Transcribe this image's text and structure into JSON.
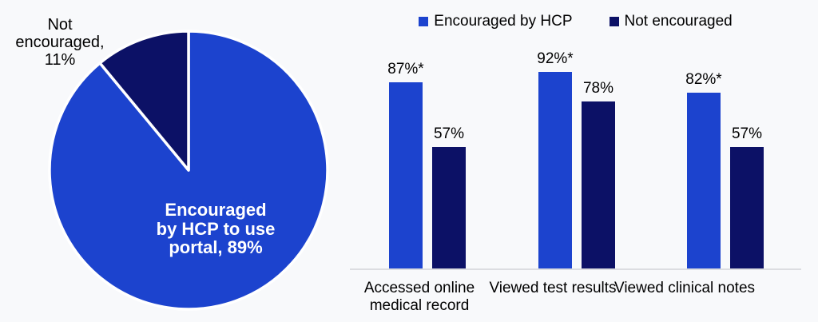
{
  "background_color": "#f8f9fb",
  "colors": {
    "encouraged": "#1c43ce",
    "not_encouraged": "#0c1166",
    "pie_divider": "#ffffff",
    "axis_line": "#dcdde1",
    "text": "#000000",
    "pie_inner_text": "#ffffff"
  },
  "chart_data": [
    {
      "type": "pie",
      "title": "",
      "direction": "clockwise",
      "start_angle_deg": 0,
      "slices": [
        {
          "label": "Encouraged by HCP to use portal",
          "value": 89,
          "color": "#1c43ce",
          "label_display": "Encouraged\nby HCP to use\nportal, 89%",
          "label_position": "inside"
        },
        {
          "label": "Not encouraged",
          "value": 11,
          "color": "#0c1166",
          "label_display": "Not\nencouraged,\n11%",
          "label_position": "outside-top-left"
        }
      ]
    },
    {
      "type": "bar",
      "title": "",
      "categories": [
        "Accessed online\nmedical record",
        "Viewed test results",
        "Viewed clinical notes"
      ],
      "series": [
        {
          "name": "Encouraged by HCP",
          "color": "#1c43ce",
          "values": [
            87,
            92,
            82
          ],
          "labels": [
            "87%*",
            "92%*",
            "82%*"
          ]
        },
        {
          "name": "Not encouraged",
          "color": "#0c1166",
          "values": [
            57,
            78,
            57
          ],
          "labels": [
            "57%",
            "78%",
            "57%"
          ]
        }
      ],
      "ylim": [
        0,
        100
      ],
      "grid": false,
      "legend_position": "top",
      "value_suffix": "%",
      "significance_marker": "*"
    }
  ]
}
